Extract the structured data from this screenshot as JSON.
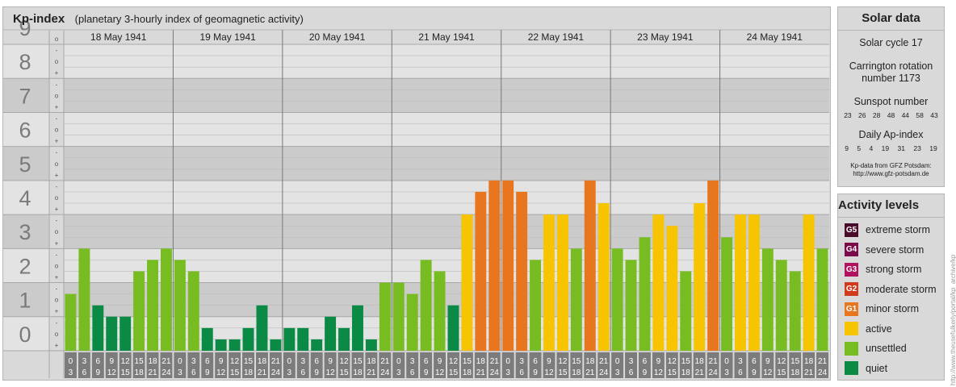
{
  "header": {
    "title": "Kp-index",
    "subtitle": "(planetary 3-hourly index of geomagnetic activity)"
  },
  "chart_data": {
    "type": "bar",
    "y_range": [
      0,
      9
    ],
    "y_tick_labels": [
      "0",
      "1",
      "2",
      "3",
      "4",
      "5",
      "6",
      "7",
      "8",
      "9"
    ],
    "minor_marks": [
      "+",
      "o",
      "-"
    ],
    "days": [
      "18 May 1941",
      "19 May 1941",
      "20 May 1941",
      "21 May 1941",
      "22 May 1941",
      "23 May 1941",
      "24 May 1941"
    ],
    "interval_labels": [
      [
        "0",
        "3"
      ],
      [
        "3",
        "6"
      ],
      [
        "6",
        "9"
      ],
      [
        "9",
        "12"
      ],
      [
        "12",
        "15"
      ],
      [
        "15",
        "18"
      ],
      [
        "18",
        "21"
      ],
      [
        "21",
        "24"
      ]
    ],
    "values": [
      [
        1.667,
        3.0,
        1.333,
        1.0,
        1.0,
        2.333,
        2.667,
        3.0
      ],
      [
        2.667,
        2.333,
        0.667,
        0.333,
        0.333,
        0.667,
        1.333,
        0.333
      ],
      [
        0.667,
        0.667,
        0.333,
        1.0,
        0.667,
        1.333,
        0.333,
        2.0
      ],
      [
        2.0,
        1.667,
        2.667,
        2.333,
        1.333,
        4.0,
        4.667,
        5.0
      ],
      [
        5.0,
        4.667,
        2.667,
        4.0,
        4.0,
        3.0,
        5.0,
        4.333
      ],
      [
        3.0,
        2.667,
        3.333,
        4.0,
        3.667,
        2.333,
        4.333,
        5.0
      ],
      [
        3.333,
        4.0,
        4.0,
        3.0,
        2.667,
        2.333,
        4.0,
        3.0
      ]
    ],
    "colors": {
      "quiet": "#0a8a44",
      "unsettled": "#77bd22",
      "active": "#f6c400",
      "minor_storm": "#e8761e"
    }
  },
  "solar": {
    "title": "Solar data",
    "cycle": "Solar cycle 17",
    "carrington_line1": "Carrington rotation",
    "carrington_line2": "number 1173",
    "sunspot_title": "Sunspot number",
    "sunspot_numbers": [
      "23",
      "26",
      "28",
      "48",
      "44",
      "58",
      "43"
    ],
    "ap_title": "Daily Ap-index",
    "ap_numbers": [
      "9",
      "5",
      "4",
      "19",
      "31",
      "23",
      "19"
    ],
    "credit_line1": "Kp-data from GFZ Potsdam:",
    "credit_line2": "http://www.gfz-potsdam.de"
  },
  "levels": {
    "title": "Activity levels",
    "items": [
      {
        "code": "G5",
        "label": "extreme storm",
        "color": "#4a0a2a"
      },
      {
        "code": "G4",
        "label": "severe storm",
        "color": "#7a0a4a"
      },
      {
        "code": "G3",
        "label": "strong storm",
        "color": "#b0125e"
      },
      {
        "code": "G2",
        "label": "moderate storm",
        "color": "#d23a1e"
      },
      {
        "code": "G1",
        "label": "minor storm",
        "color": "#e8761e"
      },
      {
        "code": "",
        "label": "active",
        "color": "#f6c400"
      },
      {
        "code": "",
        "label": "unsettled",
        "color": "#77bd22"
      },
      {
        "code": "",
        "label": "quiet",
        "color": "#0a8a44"
      }
    ]
  },
  "side_credit": "http://www.theusefulkerly/portal/kp_archive/kp"
}
